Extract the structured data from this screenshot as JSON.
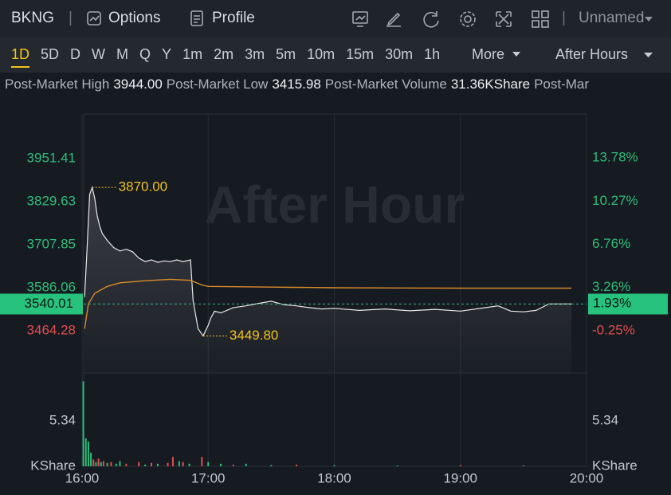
{
  "toolbar": {
    "symbol": "BKNG",
    "tabs": [
      "Options",
      "Profile"
    ],
    "layout_name": "Unnamed"
  },
  "timeframes": [
    "1D",
    "5D",
    "D",
    "W",
    "M",
    "Q",
    "Y",
    "1m",
    "2m",
    "3m",
    "5m",
    "10m",
    "15m",
    "30m",
    "1h"
  ],
  "more": "More",
  "session": "After Hours",
  "stats": [
    {
      "label": "Post-Market High",
      "value": "3944.00"
    },
    {
      "label": "Post-Market Low",
      "value": "3415.98"
    },
    {
      "label": "Post-Market Volume",
      "value": "31.36KShare"
    },
    {
      "label": "Post-Mar"
    }
  ],
  "chart_data": {
    "type": "line",
    "watermark": "After Hour",
    "x_label_note": null,
    "xlim": [
      16,
      20
    ],
    "xticks": [
      {
        "value": 16,
        "label": "16:00"
      },
      {
        "value": 17,
        "label": "17:00"
      },
      {
        "value": 18,
        "label": "18:00"
      },
      {
        "value": 19,
        "label": "19:00"
      },
      {
        "value": 20,
        "label": "20:00"
      }
    ],
    "ylim": [
      3344.8,
      4077.7
    ],
    "yticks": [
      3951.41,
      3829.63,
      3707.85,
      3586.06,
      3464.28
    ],
    "y2lim": [
      -3.68,
      17.34
    ],
    "y2ticks": [
      {
        "value": 13.78,
        "label": "13.78%"
      },
      {
        "value": 10.27,
        "label": "10.27%"
      },
      {
        "value": 6.76,
        "label": "6.76%"
      },
      {
        "value": 3.26,
        "label": "3.26%"
      },
      {
        "value": -0.25,
        "label": "-0.25%"
      }
    ],
    "last_price": 3540.01,
    "last_change": {
      "value": 1.93,
      "label": "1.93%"
    },
    "series": [
      {
        "color": "#e8e8e8",
        "x": [
          16.02,
          16.04,
          16.06,
          16.08,
          16.1,
          16.12,
          16.14,
          16.16,
          16.2,
          16.25,
          16.3,
          16.35,
          16.4,
          16.45,
          16.5,
          16.55,
          16.6,
          16.65,
          16.7,
          16.75,
          16.8,
          16.86,
          16.88,
          16.92,
          16.96,
          17.0,
          17.02,
          17.05,
          17.1,
          17.2,
          17.3,
          17.4,
          17.5,
          17.6,
          17.7,
          17.8,
          17.9,
          18.0,
          18.2,
          18.4,
          18.6,
          18.8,
          19.0,
          19.2,
          19.3,
          19.4,
          19.5,
          19.6,
          19.7,
          19.8,
          19.88
        ],
        "values": [
          3560,
          3700,
          3850,
          3870,
          3840,
          3790,
          3760,
          3740,
          3720,
          3700,
          3690,
          3695,
          3688,
          3670,
          3660,
          3665,
          3658,
          3662,
          3660,
          3665,
          3660,
          3665,
          3550,
          3470,
          3449.8,
          3480,
          3500,
          3520,
          3515,
          3530,
          3535,
          3542,
          3548,
          3538,
          3535,
          3530,
          3526,
          3528,
          3522,
          3526,
          3521,
          3525,
          3520,
          3530,
          3535,
          3520,
          3518,
          3522,
          3540,
          3540,
          3540.01
        ]
      },
      {
        "color": "#d98a2b",
        "x": [
          16.02,
          16.05,
          16.1,
          16.2,
          16.3,
          16.5,
          16.7,
          16.86,
          16.95,
          17.0,
          17.5,
          18.0,
          19.0,
          19.88
        ],
        "values": [
          3470,
          3540,
          3570,
          3590,
          3600,
          3606,
          3610,
          3607,
          3594,
          3590,
          3588,
          3586,
          3585,
          3585
        ]
      }
    ],
    "annotations": [
      {
        "x": 16.08,
        "value": 3870,
        "label": "3870.00"
      },
      {
        "x": 16.96,
        "value": 3449.8,
        "label": "3449.80"
      }
    ],
    "volume": {
      "unit": "KShare",
      "ylim": [
        0,
        10.03
      ],
      "yticks": [
        5.34
      ],
      "x": [
        16.01,
        16.03,
        16.05,
        16.07,
        16.09,
        16.11,
        16.13,
        16.15,
        16.17,
        16.2,
        16.23,
        16.27,
        16.3,
        16.35,
        16.45,
        16.5,
        16.55,
        16.6,
        16.68,
        16.72,
        16.77,
        16.8,
        16.85,
        16.95,
        17.0,
        17.1,
        17.2,
        17.3,
        17.5,
        17.7,
        18.0,
        18.5,
        19.0,
        19.5
      ],
      "values": [
        10.0,
        3.3,
        2.9,
        1.6,
        0.8,
        0.5,
        0.9,
        0.5,
        0.6,
        0.4,
        0.5,
        0.3,
        0.6,
        0.3,
        0.5,
        0.2,
        0.4,
        0.3,
        0.4,
        1.1,
        0.6,
        0.5,
        0.3,
        1.1,
        0.5,
        0.3,
        0.2,
        0.3,
        0.15,
        0.2,
        0.15,
        0.1,
        0.15,
        0.1
      ],
      "colors": [
        "#2dbd7a",
        "#2dbd7a",
        "#2dbd7a",
        "#2dbd7a",
        "#e04f4f",
        "#2dbd7a",
        "#e04f4f",
        "#2dbd7a",
        "#e04f4f",
        "#2dbd7a",
        "#e04f4f",
        "#2dbd7a",
        "#2dbd7a",
        "#e04f4f",
        "#e04f4f",
        "#2dbd7a",
        "#e04f4f",
        "#2dbd7a",
        "#e04f4f",
        "#e04f4f",
        "#2dbd7a",
        "#e04f4f",
        "#2dbd7a",
        "#e04f4f",
        "#2dbd7a",
        "#2dbd7a",
        "#e04f4f",
        "#2dbd7a",
        "#2dbd7a",
        "#e04f4f",
        "#2dbd7a",
        "#2dbd7a",
        "#e04f4f",
        "#2dbd7a"
      ]
    }
  }
}
